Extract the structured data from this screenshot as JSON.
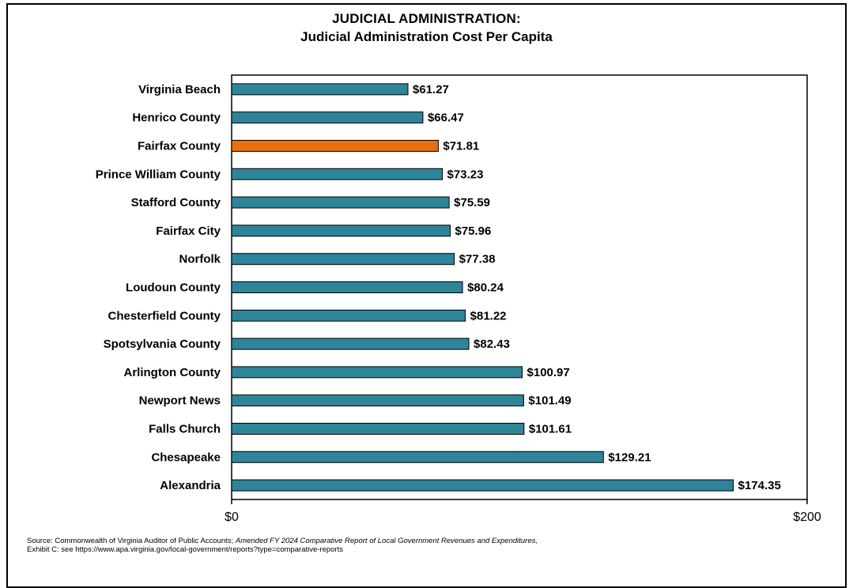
{
  "title": "JUDICIAL ADMINISTRATION:",
  "subtitle": "Judicial Administration Cost Per Capita",
  "source": {
    "prefix": "Source: Commonwealth of Virginia Auditor of Public Accounts; ",
    "document": "Amended FY 2024 Comparative Report of Local Government Revenues and Expenditures,",
    "line2": "Exhibit C: see https://www.apa.virginia.gov/local-government/reports?type=comparative-reports"
  },
  "colors": {
    "bar": "#2e8499",
    "highlight": "#e8700f",
    "outline": "#000000"
  },
  "chart_data": {
    "type": "bar",
    "orientation": "horizontal",
    "title": "JUDICIAL ADMINISTRATION:",
    "subtitle": "Judicial Administration Cost Per Capita",
    "categories": [
      "Virginia Beach",
      "Henrico County",
      "Fairfax County",
      "Prince William County",
      "Stafford County",
      "Fairfax City",
      "Norfolk",
      "Loudoun County",
      "Chesterfield County",
      "Spotsylvania County",
      "Arlington County",
      "Newport News",
      "Falls Church",
      "Chesapeake",
      "Alexandria"
    ],
    "values": [
      61.27,
      66.47,
      71.81,
      73.23,
      75.59,
      75.96,
      77.38,
      80.24,
      81.22,
      82.43,
      100.97,
      101.49,
      101.61,
      129.21,
      174.35
    ],
    "value_labels": [
      "$61.27",
      "$66.47",
      "$71.81",
      "$73.23",
      "$75.59",
      "$75.96",
      "$77.38",
      "$80.24",
      "$81.22",
      "$82.43",
      "$100.97",
      "$101.49",
      "$101.61",
      "$129.21",
      "$174.35"
    ],
    "highlight_category": "Fairfax County",
    "xlim": [
      0,
      200
    ],
    "xticks": [
      0,
      200
    ],
    "xtick_labels": [
      "$0",
      "$200"
    ],
    "grid": false,
    "legend": "none"
  }
}
